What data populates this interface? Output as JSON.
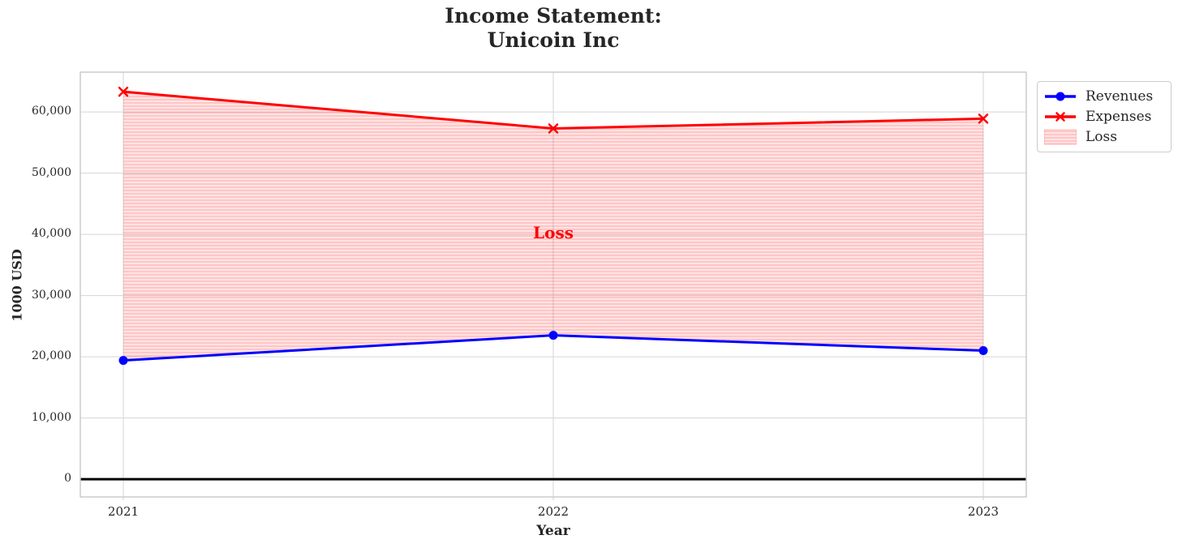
{
  "figure": {
    "title": "Income Statement:\nUnicoin Inc"
  },
  "chart_data": {
    "type": "line",
    "title": "Income Statement: Unicoin Inc",
    "x": [
      2021,
      2022,
      2023
    ],
    "x_tick_labels": [
      "2021",
      "2022",
      "2023"
    ],
    "series": [
      {
        "name": "Revenues",
        "values": [
          19400,
          23500,
          21000
        ],
        "color": "#0000ff",
        "marker": "circle",
        "linewidth": 3
      },
      {
        "name": "Expenses",
        "values": [
          63300,
          57300,
          58900
        ],
        "color": "#ff0000",
        "marker": "x",
        "linewidth": 3
      }
    ],
    "loss_area": {
      "label": "Loss",
      "between": [
        "Revenues",
        "Expenses"
      ],
      "fill_color": "#ff0000",
      "hatch": "horizontal-lines"
    },
    "annotation": {
      "text": "Loss",
      "x": 2022,
      "y": 40300,
      "color": "#ff0000"
    },
    "xlabel": "Year",
    "ylabel": "1000 USD",
    "y_ticks": [
      0,
      10000,
      20000,
      30000,
      40000,
      50000,
      60000
    ],
    "y_tick_labels": [
      "0",
      "10,000",
      "20,000",
      "30,000",
      "40,000",
      "50,000",
      "60,000"
    ],
    "xlim": [
      2020.9,
      2023.1
    ],
    "ylim": [
      -2900,
      66500
    ],
    "grid": true,
    "zero_line_color": "#000000",
    "legend": {
      "position": "outside-right-top",
      "entries": [
        "Revenues",
        "Expenses",
        "Loss"
      ]
    }
  },
  "colors": {
    "text": "#262626",
    "grid": "#d5d5d5",
    "frame": "#cccccc",
    "loss_fill": "#ff0000"
  }
}
